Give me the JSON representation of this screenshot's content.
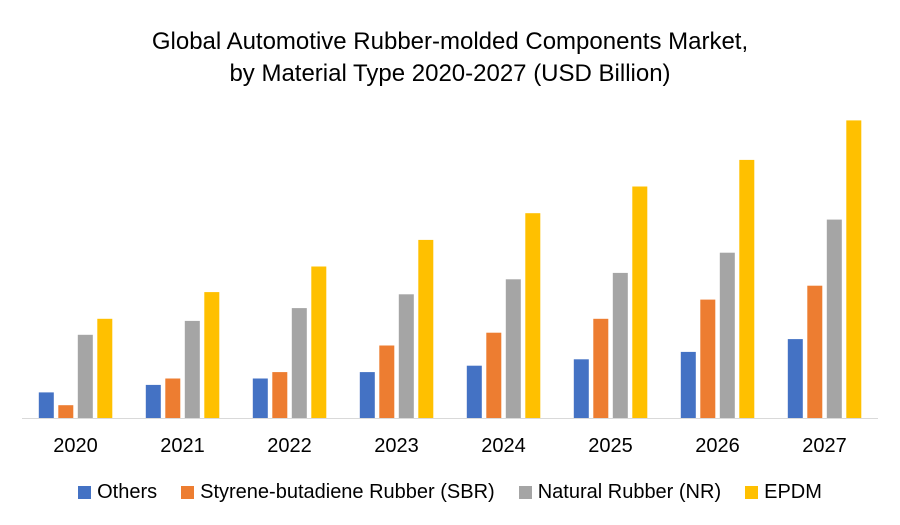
{
  "chart_data": {
    "type": "bar",
    "title_lines": [
      "Global Automotive Rubber-molded Components Market,",
      "by Material Type 2020-2027 (USD Billion)"
    ],
    "categories": [
      "2020",
      "2021",
      "2022",
      "2023",
      "2024",
      "2025",
      "2026",
      "2027"
    ],
    "series": [
      {
        "name": "Others",
        "color": "#4472C4",
        "values": [
          24,
          31,
          37,
          43,
          49,
          55,
          62,
          74
        ]
      },
      {
        "name": "Styrene-butadiene Rubber (SBR)",
        "color": "#ED7D31",
        "values": [
          12,
          37,
          43,
          68,
          80,
          93,
          111,
          124
        ]
      },
      {
        "name": "Natural Rubber (NR)",
        "color": "#A5A5A5",
        "values": [
          78,
          91,
          103,
          116,
          130,
          136,
          155,
          186
        ]
      },
      {
        "name": "EPDM",
        "color": "#FFC000",
        "values": [
          93,
          118,
          142,
          167,
          192,
          217,
          242,
          279
        ]
      }
    ],
    "xlabel": "",
    "ylabel": "",
    "ylim": [
      0,
      300
    ],
    "grid": false,
    "legend_position": "bottom"
  }
}
